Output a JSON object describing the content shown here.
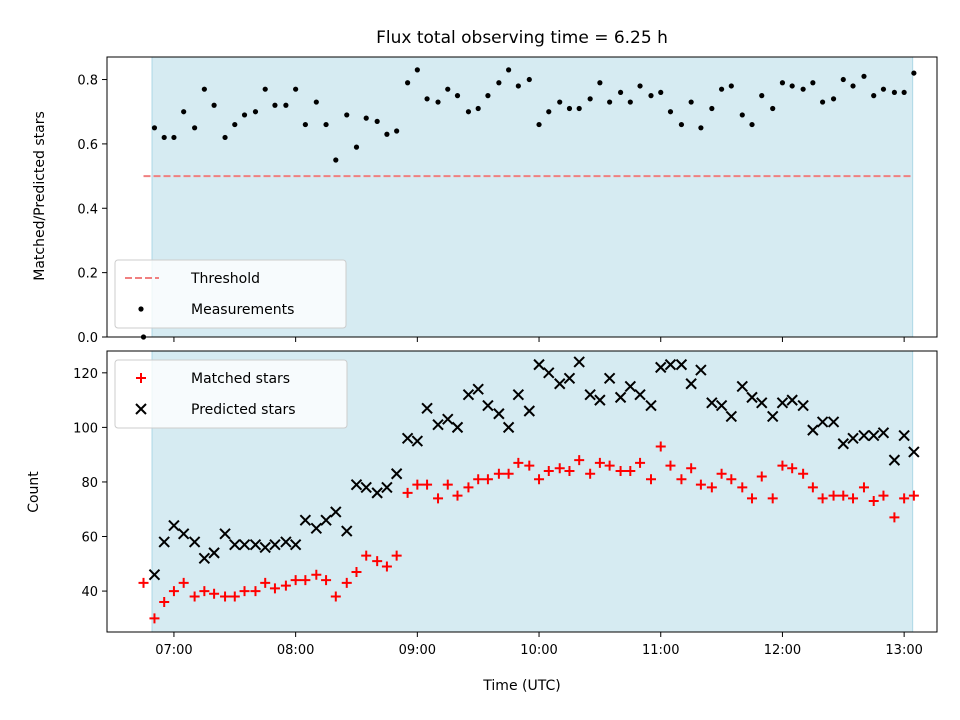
{
  "chart_data": [
    {
      "type": "scatter",
      "title": "Flux total observing time = 6.25 h",
      "xlabel": "",
      "ylabel": "Matched/Predicted stars",
      "ylim": [
        0,
        0.87
      ],
      "yticks": [
        "0.0",
        "0.2",
        "0.4",
        "0.6",
        "0.8"
      ],
      "xticks": [
        "07:00",
        "08:00",
        "09:00",
        "10:00",
        "11:00",
        "12:00",
        "13:00"
      ],
      "xlim": [
        6.45,
        13.27
      ],
      "observing_window": [
        6.82,
        13.07
      ],
      "legend_position": "lower-left",
      "threshold": {
        "name": "Threshold",
        "value": 0.5,
        "x_range": [
          6.75,
          13.07
        ],
        "color": "#f08080"
      },
      "series": [
        {
          "name": "Measurements",
          "marker": "dot",
          "color": "#000000",
          "x": [
            6.75,
            6.84,
            6.92,
            7.0,
            7.08,
            7.17,
            7.25,
            7.33,
            7.42,
            7.5,
            7.58,
            7.67,
            7.75,
            7.83,
            7.92,
            8.0,
            8.08,
            8.17,
            8.25,
            8.33,
            8.42,
            8.5,
            8.58,
            8.67,
            8.75,
            8.83,
            8.92,
            9.0,
            9.08,
            9.17,
            9.25,
            9.33,
            9.42,
            9.5,
            9.58,
            9.67,
            9.75,
            9.83,
            9.92,
            10.0,
            10.08,
            10.17,
            10.25,
            10.33,
            10.42,
            10.5,
            10.58,
            10.67,
            10.75,
            10.83,
            10.92,
            11.0,
            11.08,
            11.17,
            11.25,
            11.33,
            11.42,
            11.5,
            11.58,
            11.67,
            11.75,
            11.83,
            11.92,
            12.0,
            12.08,
            12.17,
            12.25,
            12.33,
            12.42,
            12.5,
            12.58,
            12.67,
            12.75,
            12.83,
            12.92,
            13.0,
            13.08
          ],
          "y": [
            0.0,
            0.65,
            0.62,
            0.62,
            0.7,
            0.65,
            0.77,
            0.72,
            0.62,
            0.66,
            0.69,
            0.7,
            0.77,
            0.72,
            0.72,
            0.77,
            0.66,
            0.73,
            0.66,
            0.55,
            0.69,
            0.59,
            0.68,
            0.67,
            0.63,
            0.64,
            0.79,
            0.83,
            0.74,
            0.73,
            0.77,
            0.75,
            0.7,
            0.71,
            0.75,
            0.79,
            0.83,
            0.78,
            0.8,
            0.66,
            0.7,
            0.73,
            0.71,
            0.71,
            0.74,
            0.79,
            0.73,
            0.76,
            0.73,
            0.78,
            0.75,
            0.76,
            0.7,
            0.66,
            0.73,
            0.65,
            0.71,
            0.77,
            0.78,
            0.69,
            0.66,
            0.75,
            0.71,
            0.79,
            0.78,
            0.77,
            0.79,
            0.73,
            0.74,
            0.8,
            0.78,
            0.81,
            0.75,
            0.77,
            0.76,
            0.76,
            0.82
          ]
        }
      ]
    },
    {
      "type": "scatter",
      "title": "",
      "xlabel": "Time (UTC)",
      "ylabel": "Count",
      "ylim": [
        25,
        128
      ],
      "yticks": [
        "40",
        "60",
        "80",
        "100",
        "120"
      ],
      "xticks": [
        "07:00",
        "08:00",
        "09:00",
        "10:00",
        "11:00",
        "12:00",
        "13:00"
      ],
      "xlim": [
        6.45,
        13.27
      ],
      "observing_window": [
        6.82,
        13.07
      ],
      "legend_position": "upper-left",
      "series": [
        {
          "name": "Matched stars",
          "marker": "plus",
          "color": "#ff0000",
          "x": [
            6.75,
            6.84,
            6.92,
            7.0,
            7.08,
            7.17,
            7.25,
            7.33,
            7.42,
            7.5,
            7.58,
            7.67,
            7.75,
            7.83,
            7.92,
            8.0,
            8.08,
            8.17,
            8.25,
            8.33,
            8.42,
            8.5,
            8.58,
            8.67,
            8.75,
            8.83,
            8.92,
            9.0,
            9.08,
            9.17,
            9.25,
            9.33,
            9.42,
            9.5,
            9.58,
            9.67,
            9.75,
            9.83,
            9.92,
            10.0,
            10.08,
            10.17,
            10.25,
            10.33,
            10.42,
            10.5,
            10.58,
            10.67,
            10.75,
            10.83,
            10.92,
            11.0,
            11.08,
            11.17,
            11.25,
            11.33,
            11.42,
            11.5,
            11.58,
            11.67,
            11.75,
            11.83,
            11.92,
            12.0,
            12.08,
            12.17,
            12.25,
            12.33,
            12.42,
            12.5,
            12.58,
            12.67,
            12.75,
            12.83,
            12.92,
            13.0,
            13.08
          ],
          "y": [
            43,
            30,
            36,
            40,
            43,
            38,
            40,
            39,
            38,
            38,
            40,
            40,
            43,
            41,
            42,
            44,
            44,
            46,
            44,
            38,
            43,
            47,
            53,
            51,
            49,
            53,
            76,
            79,
            79,
            74,
            79,
            75,
            78,
            81,
            81,
            83,
            83,
            87,
            86,
            81,
            84,
            85,
            84,
            88,
            83,
            87,
            86,
            84,
            84,
            87,
            81,
            93,
            86,
            81,
            85,
            79,
            78,
            83,
            81,
            78,
            74,
            82,
            74,
            86,
            85,
            83,
            78,
            74,
            75,
            75,
            74,
            78,
            73,
            75,
            67,
            74,
            75
          ]
        },
        {
          "name": "Predicted stars",
          "marker": "x",
          "color": "#000000",
          "x": [
            6.84,
            6.92,
            7.0,
            7.08,
            7.17,
            7.25,
            7.33,
            7.42,
            7.5,
            7.58,
            7.67,
            7.75,
            7.83,
            7.92,
            8.0,
            8.08,
            8.17,
            8.25,
            8.33,
            8.42,
            8.5,
            8.58,
            8.67,
            8.75,
            8.83,
            8.92,
            9.0,
            9.08,
            9.17,
            9.25,
            9.33,
            9.42,
            9.5,
            9.58,
            9.67,
            9.75,
            9.83,
            9.92,
            10.0,
            10.08,
            10.17,
            10.25,
            10.33,
            10.42,
            10.5,
            10.58,
            10.67,
            10.75,
            10.83,
            10.92,
            11.0,
            11.08,
            11.17,
            11.25,
            11.33,
            11.42,
            11.5,
            11.58,
            11.67,
            11.75,
            11.83,
            11.92,
            12.0,
            12.08,
            12.17,
            12.25,
            12.33,
            12.42,
            12.5,
            12.58,
            12.67,
            12.75,
            12.83,
            12.92,
            13.0,
            13.08
          ],
          "y": [
            46,
            58,
            64,
            61,
            58,
            52,
            54,
            61,
            57,
            57,
            57,
            56,
            57,
            58,
            57,
            66,
            63,
            66,
            69,
            62,
            79,
            78,
            76,
            78,
            83,
            96,
            95,
            107,
            101,
            103,
            100,
            112,
            114,
            108,
            105,
            100,
            112,
            106,
            123,
            120,
            116,
            118,
            124,
            112,
            110,
            118,
            111,
            115,
            112,
            108,
            122,
            123,
            123,
            116,
            121,
            109,
            108,
            104,
            115,
            111,
            109,
            104,
            109,
            110,
            108,
            99,
            102,
            102,
            94,
            96,
            97,
            97,
            98,
            88,
            97,
            91
          ]
        }
      ]
    }
  ]
}
